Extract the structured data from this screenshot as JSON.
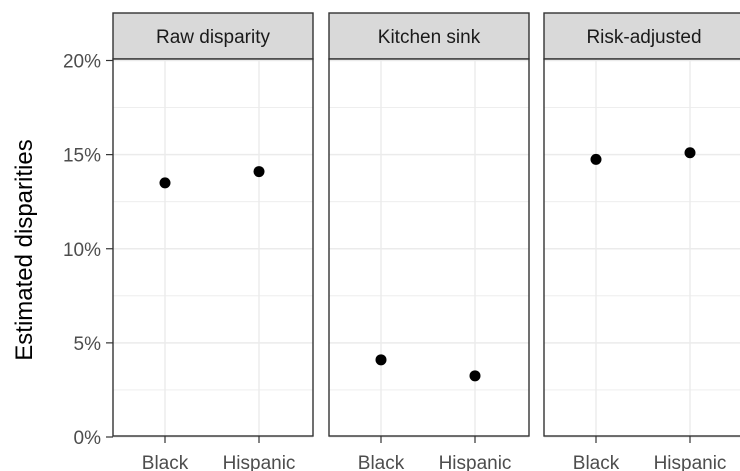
{
  "chart_data": {
    "type": "scatter",
    "ylabel": "Estimated disparities",
    "xlabel": "",
    "ylim": [
      0,
      20
    ],
    "y_ticks": [
      "0%",
      "5%",
      "10%",
      "15%",
      "20%"
    ],
    "y_tick_values": [
      0,
      5,
      10,
      15,
      20
    ],
    "categories": [
      "Black",
      "Hispanic"
    ],
    "grid": true,
    "panels": [
      {
        "title": "Raw disparity",
        "values": [
          13.5,
          14.1
        ]
      },
      {
        "title": "Kitchen sink",
        "values": [
          4.1,
          3.25
        ]
      },
      {
        "title": "Risk-adjusted",
        "values": [
          14.75,
          15.1
        ]
      }
    ]
  },
  "colors": {
    "point": "#000000",
    "strip_fill": "#d9d9d9",
    "grid": "#ebebeb",
    "border": "#333333"
  }
}
